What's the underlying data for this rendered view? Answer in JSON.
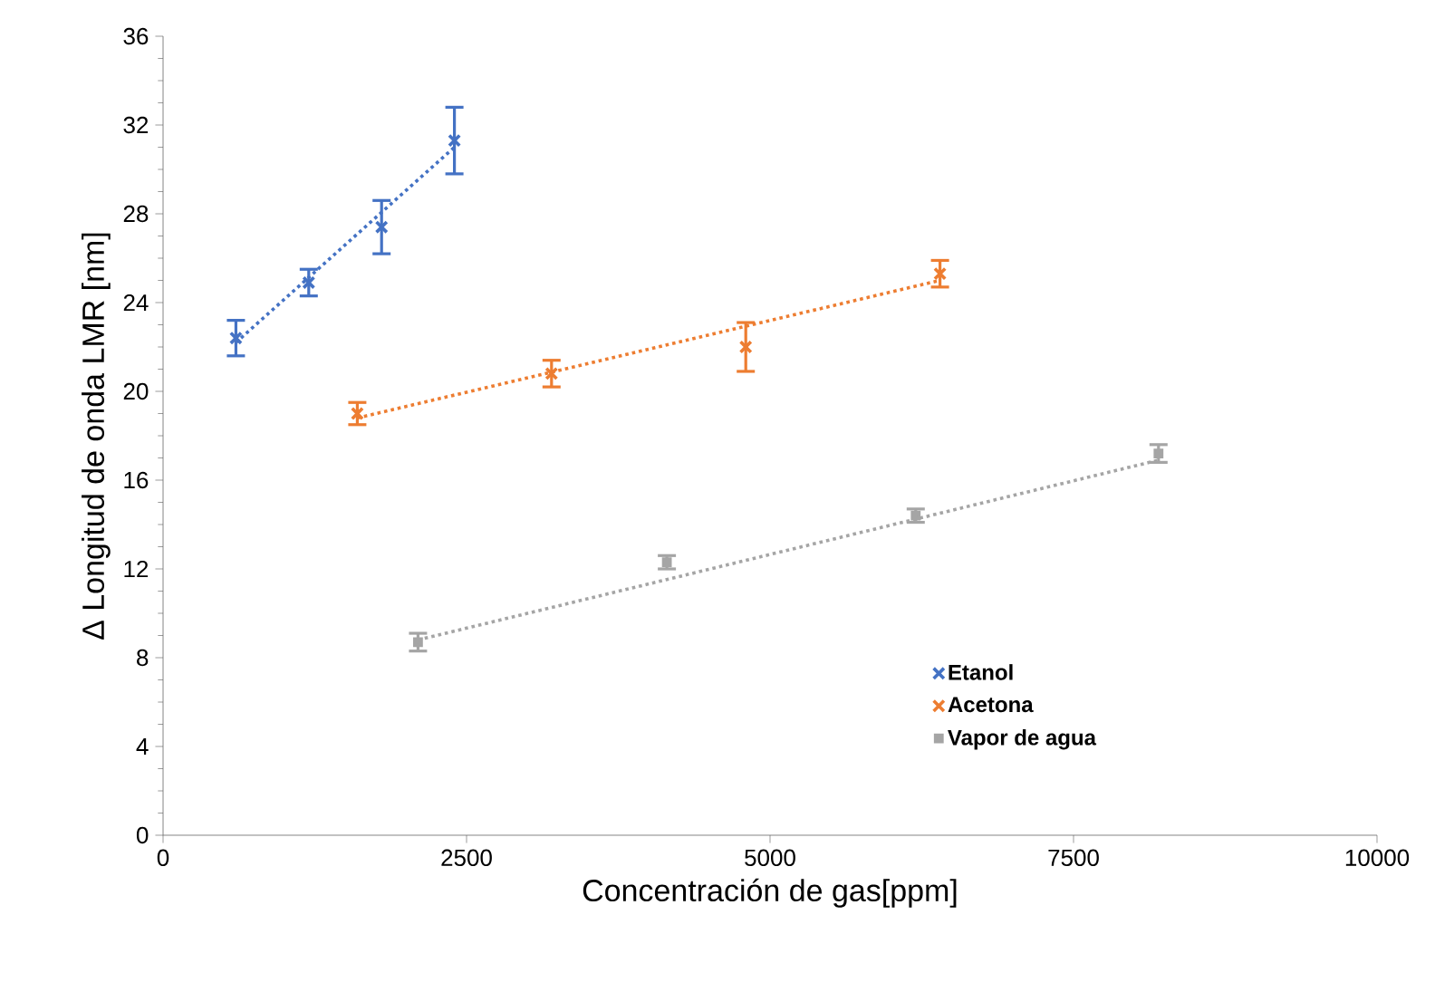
{
  "chart_data": {
    "type": "scatter",
    "xlabel": "Concentración de gas[ppm]",
    "ylabel": "Δ Longitud de onda LMR [nm]",
    "xlim": [
      0,
      10000
    ],
    "ylim": [
      0,
      36
    ],
    "xticks": [
      0,
      2500,
      5000,
      7500,
      10000
    ],
    "yticks": [
      0,
      4,
      8,
      12,
      16,
      20,
      24,
      28,
      32,
      36
    ],
    "grid": false,
    "legend": "bottom right",
    "series": [
      {
        "name": "Etanol",
        "color": "#4472c4",
        "marker": "cross",
        "x": [
          600,
          1200,
          1800,
          2400
        ],
        "values": [
          22.4,
          24.9,
          27.4,
          31.3
        ],
        "errors": [
          0.8,
          0.6,
          1.2,
          1.5
        ]
      },
      {
        "name": "Acetona",
        "color": "#ed7d31",
        "marker": "cross",
        "x": [
          1600,
          3200,
          4800,
          6400
        ],
        "values": [
          19.0,
          20.8,
          22.0,
          25.3
        ],
        "errors": [
          0.5,
          0.6,
          1.1,
          0.6
        ]
      },
      {
        "name": "Vapor de agua",
        "color": "#a5a5a5",
        "marker": "square",
        "x": [
          2100,
          4150,
          6200,
          8200
        ],
        "values": [
          8.7,
          12.3,
          14.4,
          17.2
        ],
        "errors": [
          0.4,
          0.3,
          0.3,
          0.4
        ]
      },
      {
        "type": "line",
        "line_style": "dotted",
        "marker": "none",
        "color": "#4472c4",
        "x": [
          600,
          2400
        ],
        "values": [
          22.2,
          31.0
        ]
      },
      {
        "type": "line",
        "line_style": "dotted",
        "marker": "none",
        "color": "#ed7d31",
        "x": [
          1600,
          6400
        ],
        "values": [
          18.8,
          25.0
        ]
      },
      {
        "type": "line",
        "line_style": "dotted",
        "marker": "none",
        "color": "#a5a5a5",
        "x": [
          2100,
          8200
        ],
        "values": [
          8.8,
          16.9
        ]
      }
    ]
  }
}
